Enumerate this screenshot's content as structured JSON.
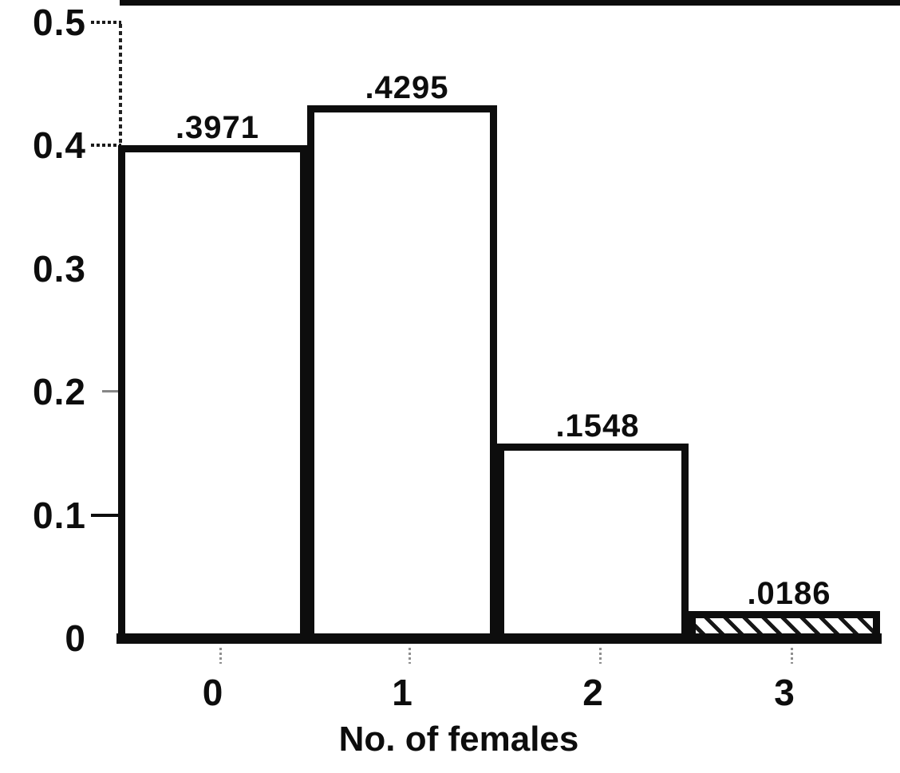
{
  "colors": {
    "ink": "#0d0d0d",
    "paper": "#ffffff"
  },
  "chart_data": {
    "type": "bar",
    "title": "",
    "xlabel": "No. of females",
    "ylabel": "",
    "categories": [
      "0",
      "1",
      "2",
      "3"
    ],
    "values": [
      0.3971,
      0.4295,
      0.1548,
      0.0186
    ],
    "bar_value_labels": [
      ".3971",
      ".4295",
      ".1548",
      ".0186"
    ],
    "y_tick_labels": [
      "0.5",
      "0.4",
      "0.3",
      "0.2",
      "0.1",
      "0"
    ],
    "y_tick_values": [
      0.5,
      0.4,
      0.3,
      0.2,
      0.1,
      0
    ],
    "ylim": [
      0,
      0.5
    ],
    "grid": false,
    "legend": false,
    "bar_styles": [
      "outline",
      "outline",
      "outline",
      "outline-hatched"
    ]
  }
}
